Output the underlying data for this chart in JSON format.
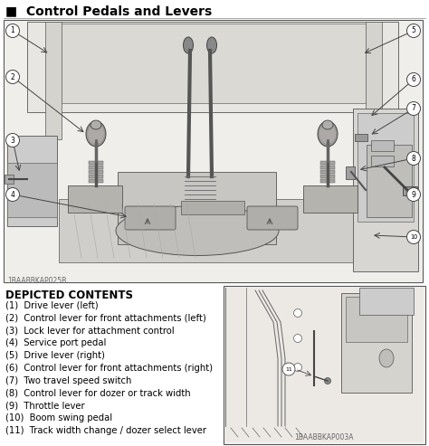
{
  "title": "■  Control Pedals and Levers",
  "depicted_contents_title": "DEPICTED CONTENTS",
  "depicted_items": [
    "(1)  Drive lever (left)",
    "(2)  Control lever for front attachments (left)",
    "(3)  Lock lever for attachment control",
    "(4)  Service port pedal",
    "(5)  Drive lever (right)",
    "(6)  Control lever for front attachments (right)",
    "(7)  Two travel speed switch",
    "(8)  Control lever for dozer or track width",
    "(9)  Throttle lever",
    "(10)  Boom swing pedal",
    "(11)  Track width change / dozer select lever"
  ],
  "code_bottom_left": "1BAABBKAP025B",
  "code_bottom_right": "1BAABBKAP003A",
  "bg_color": "#ffffff",
  "fig_w": 4.74,
  "fig_h": 4.93,
  "dpi": 100
}
